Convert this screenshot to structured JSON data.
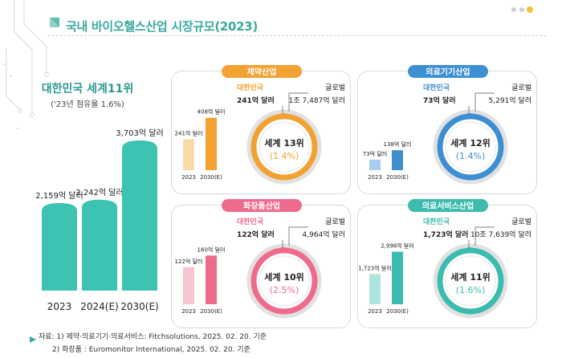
{
  "title": "국내 바이오헬스산업 시장규모(2023)",
  "summary": {
    "headline": "대한민국 세계11위",
    "subline": "('23년 점유율 1.6%)",
    "accent_color": "#3cc3b1"
  },
  "chart_data": [
    {
      "type": "bar",
      "title": "대한민국 세계11위",
      "subtitle": "('23년 점유율 1.6%)",
      "categories": [
        "2023",
        "2024(E)",
        "2030(E)"
      ],
      "values": [
        2159,
        2242,
        3703
      ],
      "value_labels": [
        "2,159억 달러",
        "2,242억 달러",
        "3,703억 달러"
      ],
      "unit": "억 달러",
      "ylim": [
        0,
        4000
      ]
    },
    {
      "type": "bar",
      "title": "제약산업",
      "color": "#f2a232",
      "light_color": "#f9d9a8",
      "categories": [
        "2023",
        "2030(E)"
      ],
      "values": [
        241,
        408
      ],
      "value_labels": [
        "241억 달러",
        "408억 달러"
      ],
      "ylim": [
        0,
        450
      ],
      "korea_label": "대한민국",
      "korea_value": "241억 달러",
      "global_label": "글로벌",
      "global_value": "1조 7,487억 달러",
      "rank": "세계 13위",
      "share": "(1.4%)",
      "share_ratio": 0.014
    },
    {
      "type": "bar",
      "title": "의료기기산업",
      "color": "#3e8fd1",
      "light_color": "#a9cdee",
      "categories": [
        "2023",
        "2030(E)"
      ],
      "values": [
        73,
        138
      ],
      "value_labels": [
        "73억 달러",
        "138억 달러"
      ],
      "ylim": [
        0,
        400
      ],
      "korea_label": "대한민국",
      "korea_value": "73억 달러",
      "global_label": "글로벌",
      "global_value": "5,291억 달러",
      "rank": "세계 12위",
      "share": "(1.4%)",
      "share_ratio": 0.014
    },
    {
      "type": "bar",
      "title": "화장품산업",
      "color": "#ef6b8b",
      "light_color": "#f7c6d2",
      "categories": [
        "2023",
        "2030(E)"
      ],
      "values": [
        122,
        160
      ],
      "value_labels": [
        "122억 달러",
        "160억 달러"
      ],
      "ylim": [
        0,
        190
      ],
      "korea_label": "대한민국",
      "korea_value": "122억 달러",
      "global_label": "글로벌",
      "global_value": "4,964억 달러",
      "rank": "세계 10위",
      "share": "(2.5%)",
      "share_ratio": 0.025
    },
    {
      "type": "bar",
      "title": "의료서비스산업",
      "color": "#3cbcae",
      "light_color": "#aee4dd",
      "categories": [
        "2023",
        "2030(E)"
      ],
      "values": [
        1723,
        2998
      ],
      "value_labels": [
        "1,723억 달러",
        "2,998억 달러"
      ],
      "ylim": [
        0,
        3300
      ],
      "korea_label": "대한민국",
      "korea_value": "1,723억 달러",
      "global_label": "글로벌",
      "global_value": "10조 7,639억 달러",
      "rank": "세계 11위",
      "share": "(1.6%)",
      "share_ratio": 0.016
    }
  ],
  "footnotes": {
    "line1": "자료: 1) 제약·의료기기·의료서비스: Fitchsolutions, 2025. 02. 20. 기준",
    "line2": "2) 화장품 : Euromonitor International, 2025. 02. 20. 기준"
  },
  "colors": {
    "title": "#3aa99f",
    "ring_bg": "#d9d9d9"
  }
}
